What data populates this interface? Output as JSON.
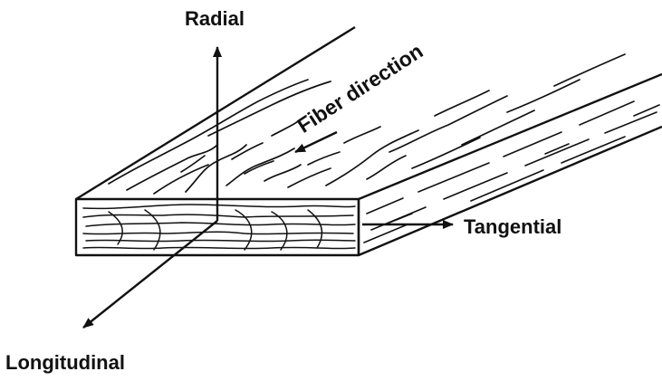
{
  "labels": {
    "radial": "Radial",
    "tangential": "Tangential",
    "longitudinal": "Longitudinal",
    "fiber_direction": "Fiber direction"
  },
  "colors": {
    "ink": "#111111",
    "background": "#ffffff"
  }
}
